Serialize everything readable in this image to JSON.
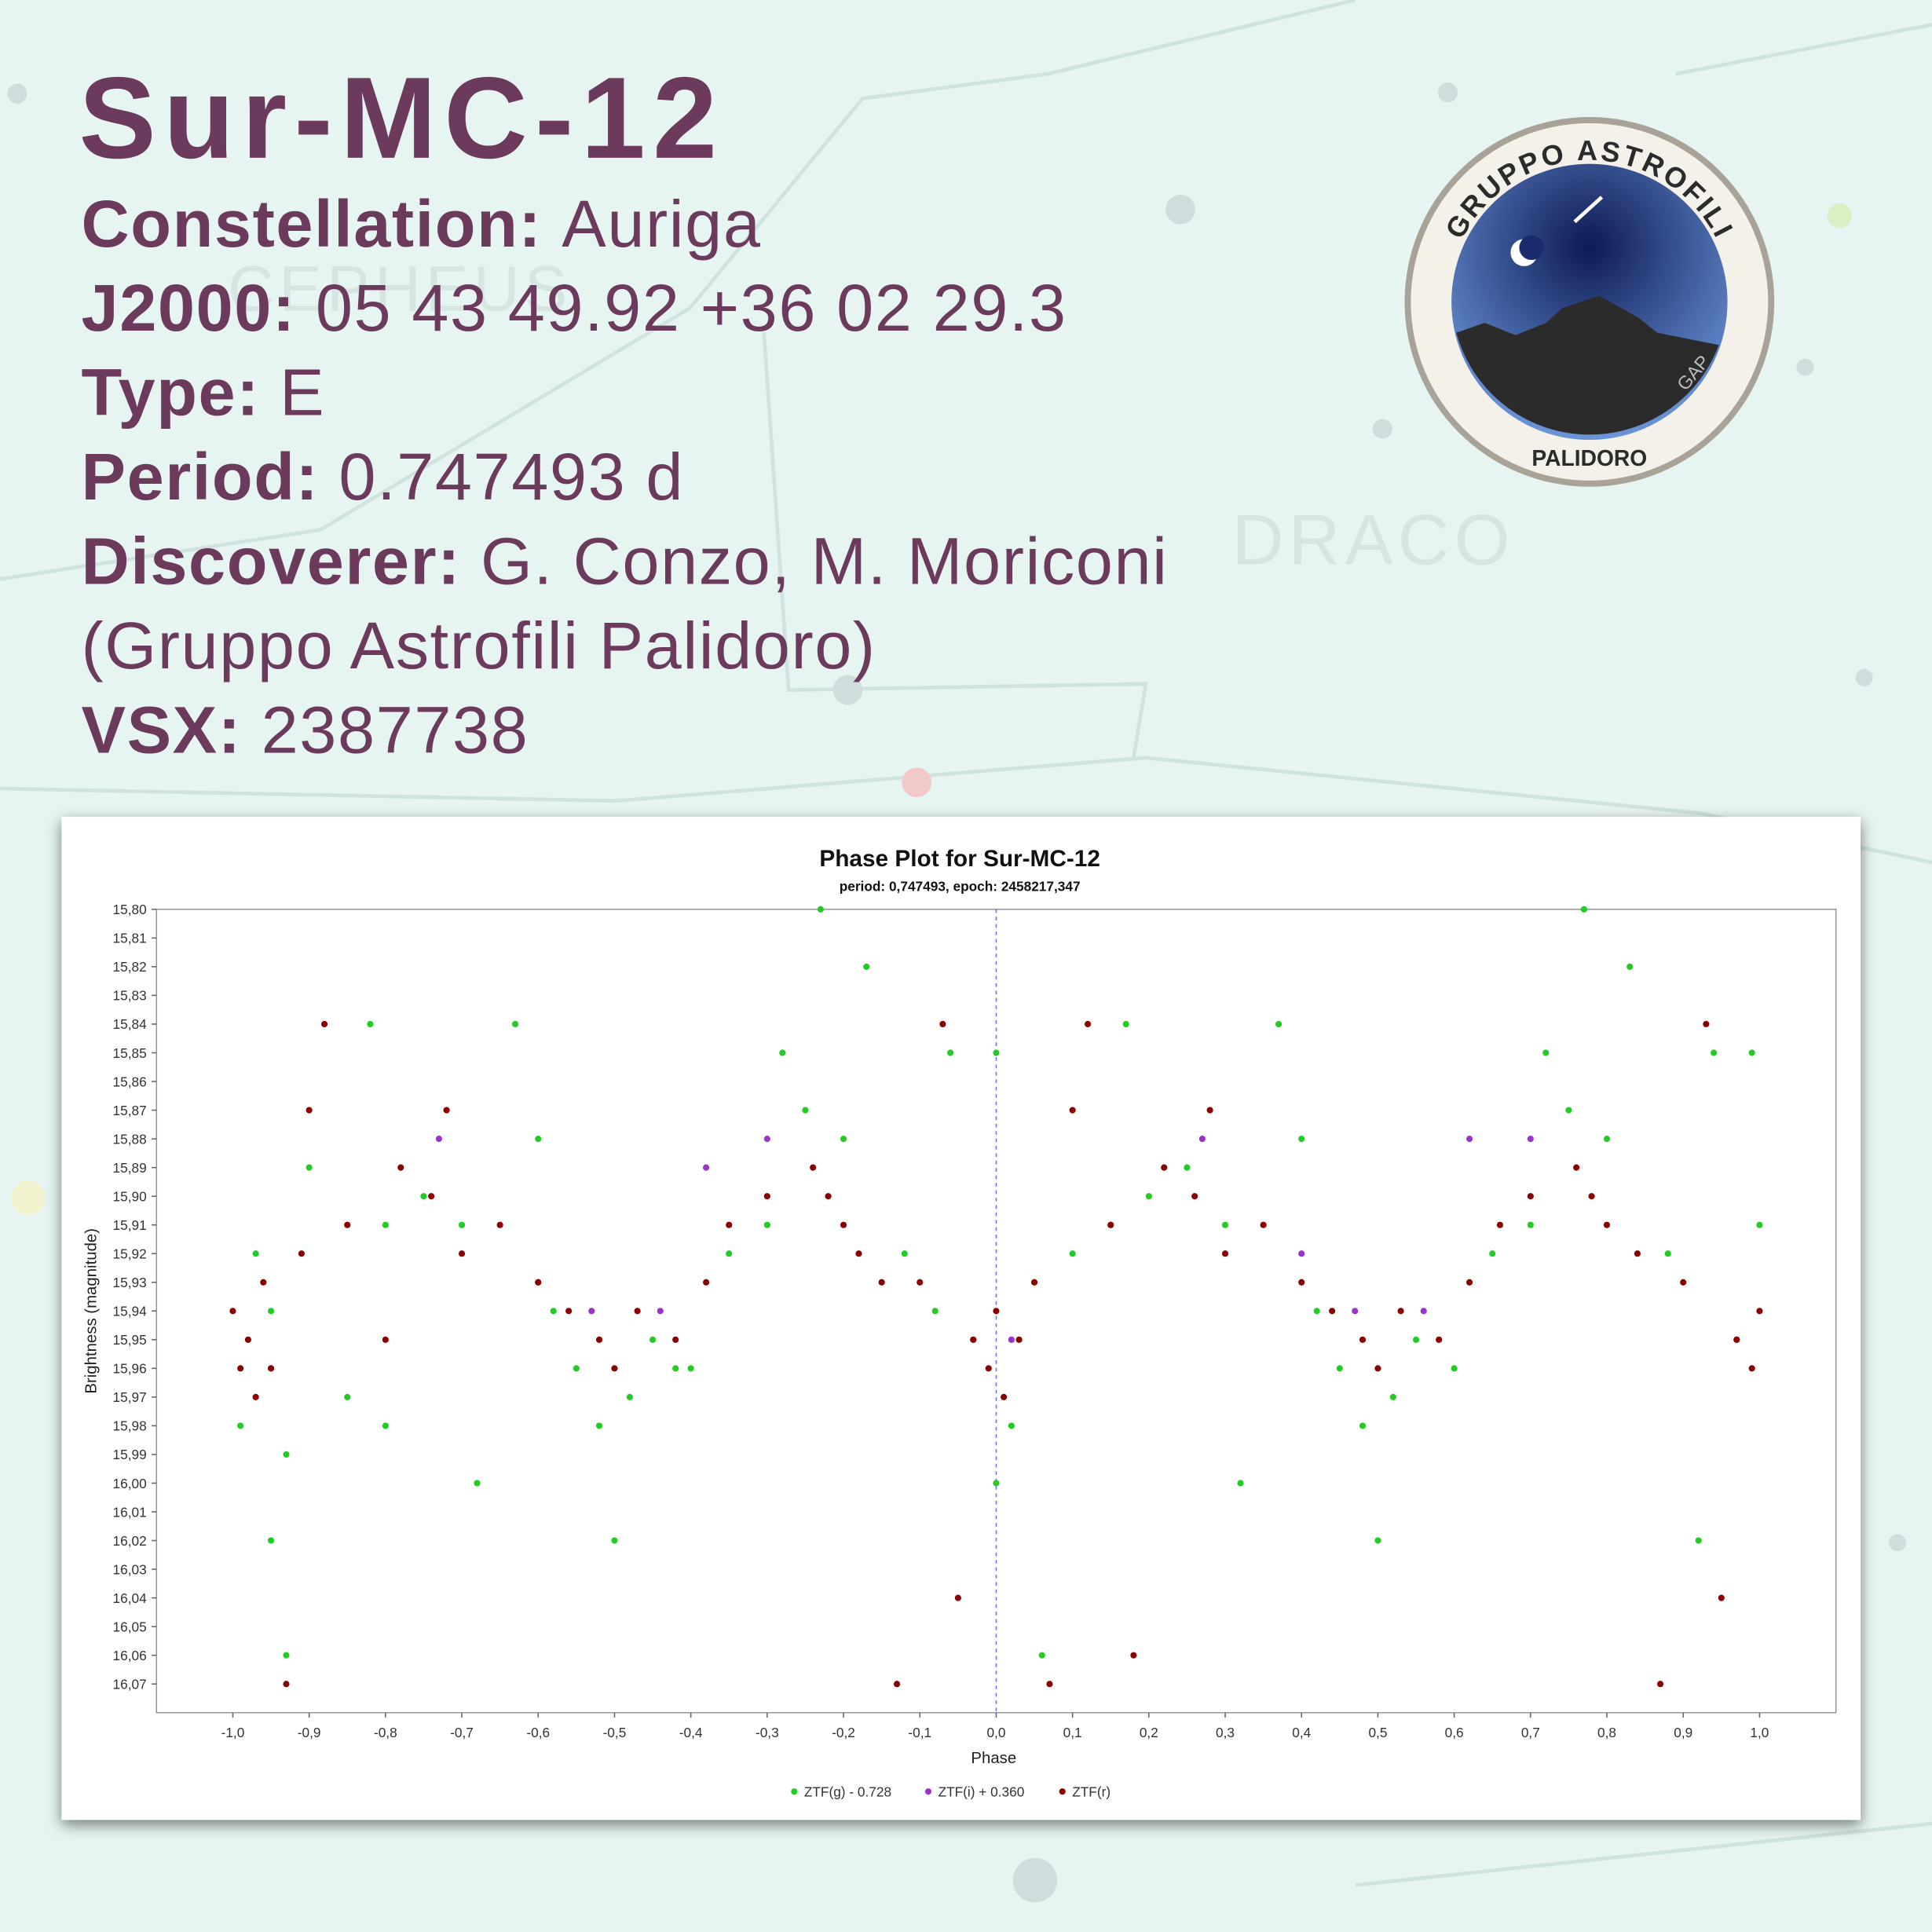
{
  "poster": {
    "title": "Sur-MC-12",
    "fields": [
      {
        "label": "Constellation:",
        "value": "Auriga"
      },
      {
        "label": "J2000:",
        "value": "05 43 49.92 +36 02 29.3"
      },
      {
        "label": "Type:",
        "value": "E"
      },
      {
        "label": "Period:",
        "value": "0.747493 d"
      },
      {
        "label": "Discoverer:",
        "value": "G. Conzo, M. Moriconi"
      }
    ],
    "discoverer_affiliation": "(Gruppo Astrofili Palidoro)",
    "vsx": {
      "label": "VSX:",
      "value": "2387738"
    },
    "logo": {
      "top": "GRUPPO ASTROFILI",
      "bottom": "PALIDORO",
      "monogram": "GAP"
    },
    "background_labels": [
      "CEPHEUS",
      "DRACO"
    ]
  },
  "chart_data": {
    "type": "scatter",
    "title": "Phase Plot for Sur-MC-12",
    "subtitle": "period: 0,747493, epoch: 2458217,347",
    "xlabel": "Phase",
    "ylabel": "Brightness (magnitude)",
    "xlim": [
      -1.1,
      1.1
    ],
    "ylim": [
      16.08,
      15.8
    ],
    "marker_x": 0,
    "legend": "bottom",
    "xticks": [
      {
        "value": -1.0,
        "label": "-1,0"
      },
      {
        "value": -0.9,
        "label": "-0,9"
      },
      {
        "value": -0.8,
        "label": "-0,8"
      },
      {
        "value": -0.7,
        "label": "-0,7"
      },
      {
        "value": -0.6,
        "label": "-0,6"
      },
      {
        "value": -0.5,
        "label": "-0,5"
      },
      {
        "value": -0.4,
        "label": "-0,4"
      },
      {
        "value": -0.3,
        "label": "-0,3"
      },
      {
        "value": -0.2,
        "label": "-0,2"
      },
      {
        "value": -0.1,
        "label": "-0,1"
      },
      {
        "value": 0.0,
        "label": "0,0"
      },
      {
        "value": 0.1,
        "label": "0,1"
      },
      {
        "value": 0.2,
        "label": "0,2"
      },
      {
        "value": 0.3,
        "label": "0,3"
      },
      {
        "value": 0.4,
        "label": "0,4"
      },
      {
        "value": 0.5,
        "label": "0,5"
      },
      {
        "value": 0.6,
        "label": "0,6"
      },
      {
        "value": 0.7,
        "label": "0,7"
      },
      {
        "value": 0.8,
        "label": "0,8"
      },
      {
        "value": 0.9,
        "label": "0,9"
      },
      {
        "value": 1.0,
        "label": "1,0"
      }
    ],
    "yticks": [
      {
        "value": 15.8,
        "label": "15,80"
      },
      {
        "value": 15.81,
        "label": "15,81"
      },
      {
        "value": 15.82,
        "label": "15,82"
      },
      {
        "value": 15.83,
        "label": "15,83"
      },
      {
        "value": 15.84,
        "label": "15,84"
      },
      {
        "value": 15.85,
        "label": "15,85"
      },
      {
        "value": 15.86,
        "label": "15,86"
      },
      {
        "value": 15.87,
        "label": "15,87"
      },
      {
        "value": 15.88,
        "label": "15,88"
      },
      {
        "value": 15.89,
        "label": "15,89"
      },
      {
        "value": 15.9,
        "label": "15,90"
      },
      {
        "value": 15.91,
        "label": "15,91"
      },
      {
        "value": 15.92,
        "label": "15,92"
      },
      {
        "value": 15.93,
        "label": "15,93"
      },
      {
        "value": 15.94,
        "label": "15,94"
      },
      {
        "value": 15.95,
        "label": "15,95"
      },
      {
        "value": 15.96,
        "label": "15,96"
      },
      {
        "value": 15.97,
        "label": "15,97"
      },
      {
        "value": 15.98,
        "label": "15,98"
      },
      {
        "value": 15.99,
        "label": "15,99"
      },
      {
        "value": 16.0,
        "label": "16,00"
      },
      {
        "value": 16.01,
        "label": "16,01"
      },
      {
        "value": 16.02,
        "label": "16,02"
      },
      {
        "value": 16.03,
        "label": "16,03"
      },
      {
        "value": 16.04,
        "label": "16,04"
      },
      {
        "value": 16.05,
        "label": "16,05"
      },
      {
        "value": 16.06,
        "label": "16,06"
      },
      {
        "value": 16.07,
        "label": "16,07"
      }
    ],
    "series": [
      {
        "name": "ZTF(g) - 0.728",
        "color": "#22cc22",
        "x": [
          -0.99,
          -0.97,
          -0.95,
          -0.93,
          -0.95,
          -0.93,
          -0.9,
          -0.85,
          -0.82,
          -0.8,
          -0.8,
          -0.75,
          -0.7,
          -0.68,
          -0.63,
          -0.6,
          -0.58,
          -0.55,
          -0.52,
          -0.5,
          -0.48,
          -0.45,
          -0.42,
          -0.4,
          -0.35,
          -0.3,
          -0.28,
          -0.25,
          -0.23,
          -0.2,
          -0.17,
          -0.12,
          -0.08,
          -0.06,
          -0.03,
          0.0,
          0.0,
          0.02,
          0.05,
          0.06,
          0.1,
          0.15,
          0.17,
          0.2,
          0.25,
          0.3,
          0.32,
          0.37,
          0.4,
          0.42,
          0.45,
          0.48,
          0.5,
          0.52,
          0.55,
          0.6,
          0.65,
          0.7,
          0.72,
          0.75,
          0.77,
          0.8,
          0.83,
          0.88,
          0.92,
          0.94,
          0.97,
          0.99,
          1.0
        ],
        "values": [
          15.98,
          15.92,
          15.94,
          15.99,
          16.02,
          16.06,
          15.89,
          15.97,
          15.84,
          15.91,
          15.98,
          15.9,
          15.91,
          16.0,
          15.84,
          15.88,
          15.94,
          15.96,
          15.98,
          16.02,
          15.97,
          15.95,
          15.96,
          15.96,
          15.92,
          15.91,
          15.85,
          15.87,
          15.8,
          15.88,
          15.82,
          15.92,
          15.94,
          15.85,
          15.95,
          15.85,
          16.0,
          15.98,
          15.93,
          16.06,
          15.92,
          15.91,
          15.84,
          15.9,
          15.89,
          15.91,
          16.0,
          15.84,
          15.88,
          15.94,
          15.96,
          15.98,
          16.02,
          15.97,
          15.95,
          15.96,
          15.92,
          15.91,
          15.85,
          15.87,
          15.8,
          15.88,
          15.82,
          15.92,
          16.02,
          15.85,
          15.95,
          15.85,
          15.91
        ]
      },
      {
        "name": "ZTF(i) + 0.360",
        "color": "#9933cc",
        "x": [
          -0.95,
          -0.73,
          -0.6,
          -0.53,
          -0.44,
          -0.38,
          -0.3,
          0.02,
          0.27,
          0.4,
          0.47,
          0.56,
          0.62,
          0.7
        ],
        "values": [
          15.96,
          15.88,
          15.93,
          15.94,
          15.94,
          15.89,
          15.88,
          15.95,
          15.88,
          15.92,
          15.94,
          15.94,
          15.88,
          15.88
        ]
      },
      {
        "name": "ZTF(r)",
        "color": "#8b0000",
        "x": [
          -1.0,
          -0.99,
          -0.98,
          -0.97,
          -0.96,
          -0.95,
          -0.93,
          -0.91,
          -0.9,
          -0.88,
          -0.85,
          -0.8,
          -0.78,
          -0.74,
          -0.72,
          -0.7,
          -0.65,
          -0.6,
          -0.56,
          -0.52,
          -0.5,
          -0.47,
          -0.42,
          -0.38,
          -0.35,
          -0.3,
          -0.24,
          -0.22,
          -0.2,
          -0.18,
          -0.15,
          -0.13,
          -0.1,
          -0.07,
          -0.05,
          -0.03,
          -0.01,
          0.0,
          0.01,
          0.03,
          0.05,
          0.07,
          0.1,
          0.12,
          0.15,
          0.18,
          0.22,
          0.26,
          0.28,
          0.3,
          0.35,
          0.4,
          0.44,
          0.48,
          0.5,
          0.53,
          0.58,
          0.62,
          0.66,
          0.7,
          0.76,
          0.78,
          0.8,
          0.84,
          0.87,
          0.9,
          0.93,
          0.95,
          0.97,
          0.99,
          1.0
        ],
        "values": [
          15.94,
          15.96,
          15.95,
          15.97,
          15.93,
          15.96,
          16.07,
          15.92,
          15.87,
          15.84,
          15.91,
          15.95,
          15.89,
          15.9,
          15.87,
          15.92,
          15.91,
          15.93,
          15.94,
          15.95,
          15.96,
          15.94,
          15.95,
          15.93,
          15.91,
          15.9,
          15.89,
          15.9,
          15.91,
          15.92,
          15.93,
          16.07,
          15.93,
          15.84,
          16.04,
          15.95,
          15.96,
          15.94,
          15.97,
          15.95,
          15.93,
          16.07,
          15.87,
          15.84,
          15.91,
          16.06,
          15.89,
          15.9,
          15.87,
          15.92,
          15.91,
          15.93,
          15.94,
          15.95,
          15.96,
          15.94,
          15.95,
          15.93,
          15.91,
          15.9,
          15.89,
          15.9,
          15.91,
          15.92,
          16.07,
          15.93,
          15.84,
          16.04,
          15.95,
          15.96,
          15.94
        ]
      }
    ]
  }
}
